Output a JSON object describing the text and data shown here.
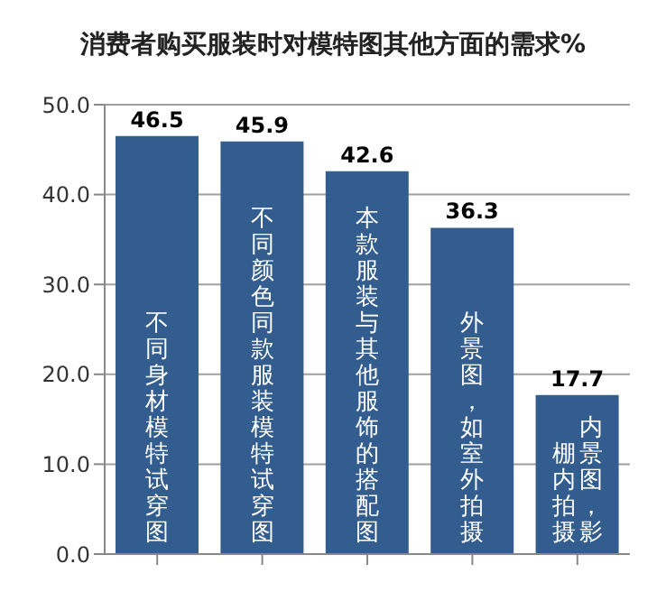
{
  "chart_data": {
    "type": "bar",
    "title": "消费者购买服装时对模特图其他方面的需求%",
    "categories": [
      "不同身材模特试穿图",
      "不同颜色同款服装模特试穿图",
      "本款服装与其他服饰的搭配图",
      "外景图，如室外拍摄",
      "内景图，影棚内拍摄"
    ],
    "values": [
      46.5,
      45.9,
      42.6,
      36.3,
      17.7
    ],
    "color": "#325d8e",
    "ylim": [
      0,
      50
    ],
    "yticks": [
      {
        "value": 0,
        "label": "0.0"
      },
      {
        "value": 10,
        "label": "10.0"
      },
      {
        "value": 20,
        "label": "20.0"
      },
      {
        "value": 30,
        "label": "30.0"
      },
      {
        "value": 40,
        "label": "40.0"
      },
      {
        "value": 50,
        "label": "50.0"
      }
    ],
    "grid": "y",
    "data_labels": true
  }
}
